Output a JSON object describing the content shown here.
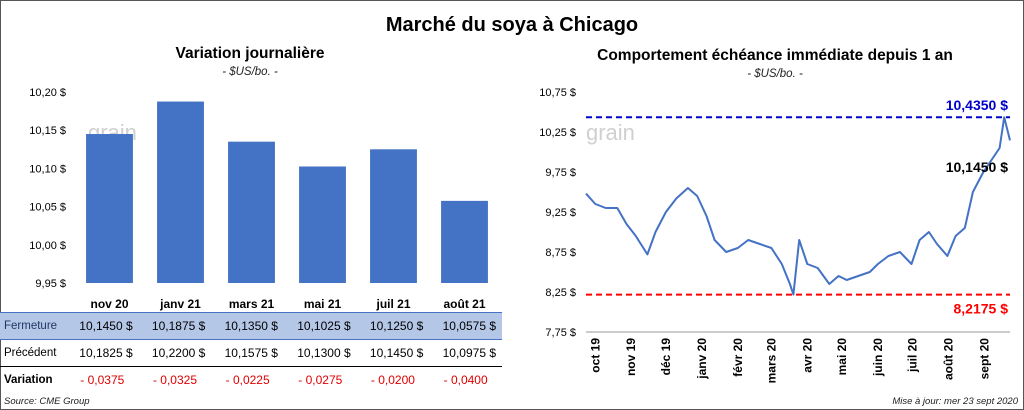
{
  "title": "Marché du soya à Chicago",
  "left": {
    "title": "Variation journalière",
    "unit": "- $US/bo. -",
    "watermark": "grain",
    "y_ticks": [
      "9,95 $",
      "10,00 $",
      "10,05 $",
      "10,10 $",
      "10,15 $",
      "10,20 $"
    ]
  },
  "right": {
    "title": "Comportement  échéance immédiate depuis 1 an",
    "unit": "- $US/bo. -",
    "watermark": "grain",
    "y_ticks": [
      "7,75 $",
      "8,25 $",
      "8,75 $",
      "9,25 $",
      "9,75 $",
      "10,25 $",
      "10,75 $"
    ],
    "x_ticks": [
      "oct 19",
      "nov 19",
      "déc 19",
      "janv 20",
      "févr 20",
      "mars 20",
      "avr 20",
      "mai 20",
      "juin 20",
      "juil 20",
      "août 20",
      "sept 20"
    ],
    "max_label": "10,4350 $",
    "last_label": "10,1450 $",
    "min_label": "8,2175 $"
  },
  "table": {
    "rows": [
      {
        "label": "Fermeture",
        "cells": [
          "10,1450  $",
          "10,1875  $",
          "10,1350  $",
          "10,1025  $",
          "10,1250  $",
          "10,0575  $"
        ]
      },
      {
        "label": "Précédent",
        "cells": [
          "10,1825  $",
          "10,2200  $",
          "10,1575  $",
          "10,1300  $",
          "10,1450  $",
          "10,0975  $"
        ]
      },
      {
        "label": "Variation",
        "cells": [
          "- 0,0375",
          "- 0,0325",
          "- 0,0225",
          "- 0,0275",
          "- 0,0200",
          "- 0,0400"
        ]
      }
    ]
  },
  "source": "Source: CME Group",
  "updated": "Mise à jour: mer 23 sept 2020",
  "colors": {
    "bar": "#4472c4",
    "line": "#4472c4",
    "max": "#0000cc",
    "min": "#ff0000",
    "neg": "#e00000"
  },
  "chart_data": [
    {
      "type": "bar",
      "title": "Variation journalière",
      "ylabel": "- $US/bo. -",
      "categories": [
        "nov 20",
        "janv 21",
        "mars 21",
        "mai 21",
        "juil 21",
        "août 21"
      ],
      "values": [
        10.145,
        10.1875,
        10.135,
        10.1025,
        10.125,
        10.0575
      ],
      "ylim": [
        9.95,
        10.2
      ],
      "grid": false
    },
    {
      "type": "line",
      "title": "Comportement  échéance immédiate depuis 1 an",
      "ylabel": "- $US/bo. -",
      "ylim": [
        7.75,
        10.75
      ],
      "grid": false,
      "x": [
        "2019-09-23",
        "2019-10-01",
        "2019-10-10",
        "2019-10-20",
        "2019-10-28",
        "2019-11-05",
        "2019-11-15",
        "2019-11-22",
        "2019-12-01",
        "2019-12-10",
        "2019-12-20",
        "2019-12-28",
        "2020-01-05",
        "2020-01-12",
        "2020-01-22",
        "2020-02-01",
        "2020-02-10",
        "2020-02-20",
        "2020-03-01",
        "2020-03-10",
        "2020-03-17",
        "2020-03-20",
        "2020-03-25",
        "2020-04-01",
        "2020-04-10",
        "2020-04-20",
        "2020-04-28",
        "2020-05-05",
        "2020-05-15",
        "2020-05-25",
        "2020-06-01",
        "2020-06-10",
        "2020-06-20",
        "2020-06-30",
        "2020-07-07",
        "2020-07-15",
        "2020-07-22",
        "2020-07-31",
        "2020-08-07",
        "2020-08-15",
        "2020-08-22",
        "2020-08-31",
        "2020-09-07",
        "2020-09-14",
        "2020-09-18",
        "2020-09-23"
      ],
      "y": [
        9.48,
        9.35,
        9.3,
        9.3,
        9.1,
        8.95,
        8.72,
        9.0,
        9.25,
        9.42,
        9.55,
        9.45,
        9.2,
        8.9,
        8.75,
        8.8,
        8.9,
        8.85,
        8.8,
        8.6,
        8.35,
        8.2175,
        8.9,
        8.6,
        8.55,
        8.35,
        8.45,
        8.4,
        8.45,
        8.5,
        8.6,
        8.7,
        8.75,
        8.6,
        8.9,
        9.0,
        8.85,
        8.7,
        8.95,
        9.05,
        9.5,
        9.75,
        9.9,
        10.05,
        10.435,
        10.145
      ],
      "hlines": [
        {
          "value": 10.435,
          "label": "10,4350 $"
        },
        {
          "value": 8.2175,
          "label": "8,2175 $"
        }
      ]
    }
  ]
}
